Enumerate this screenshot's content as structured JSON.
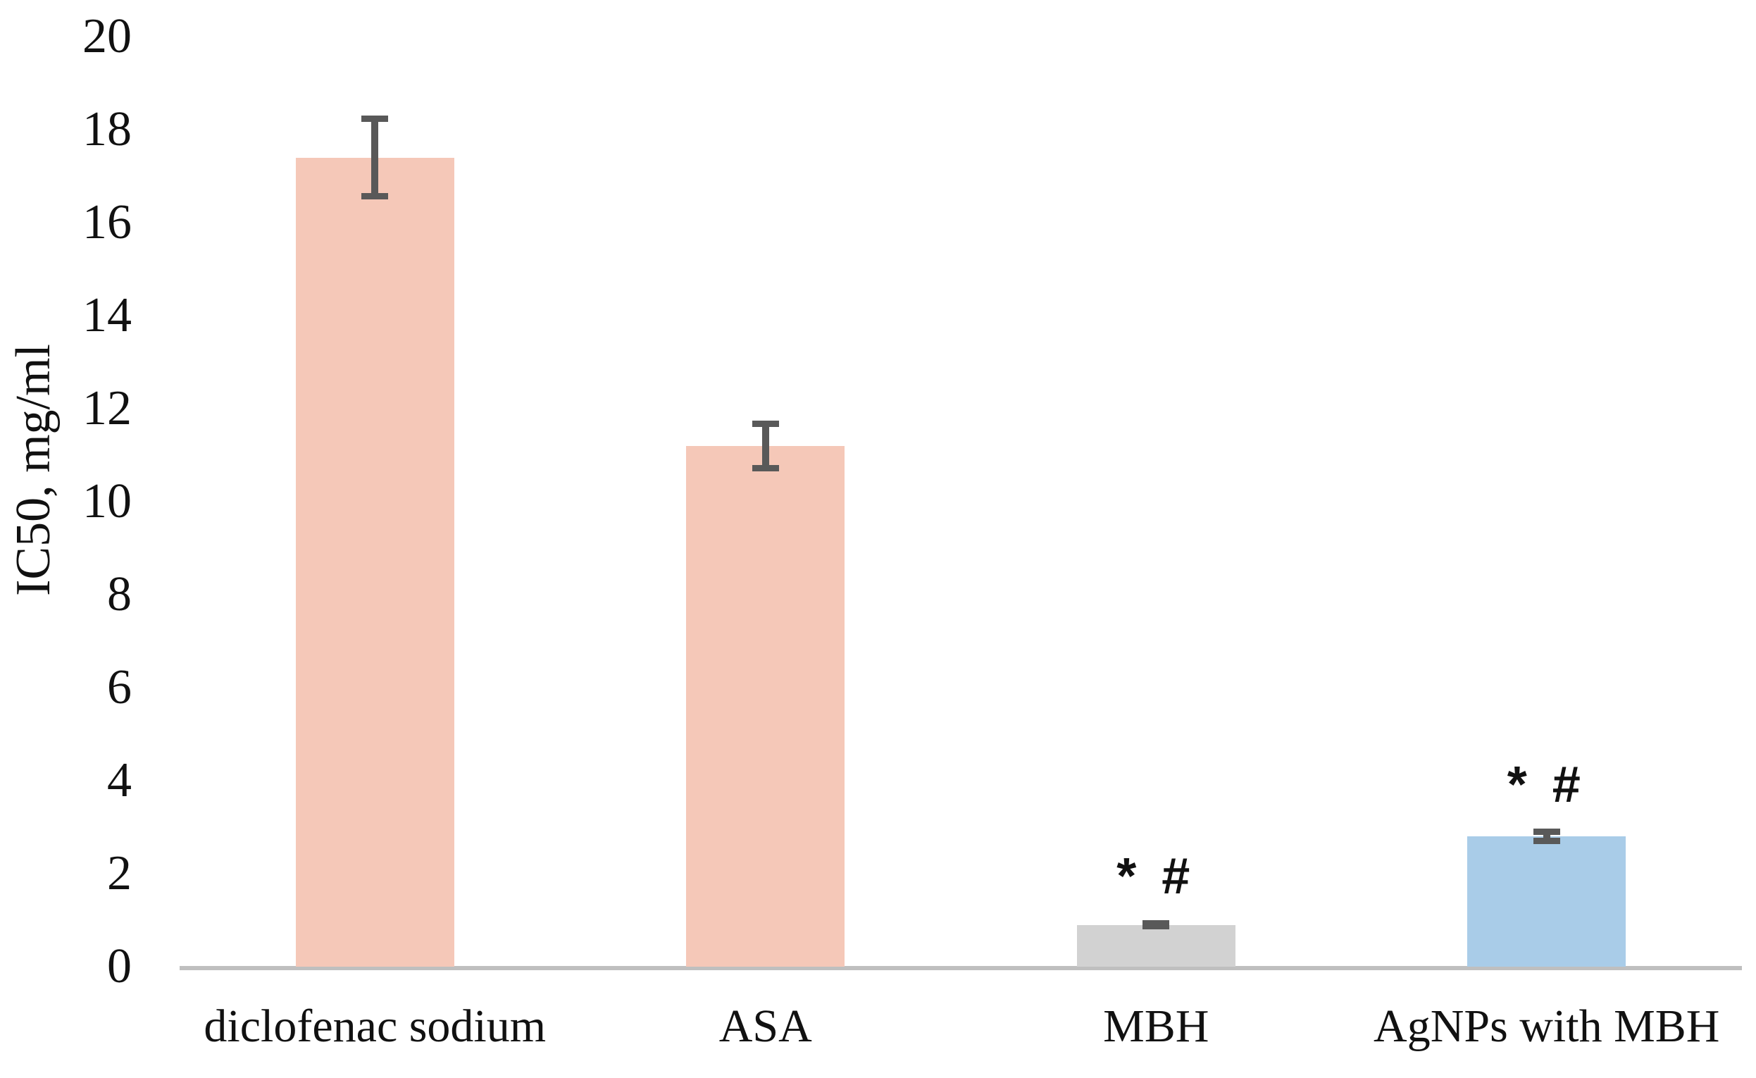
{
  "chart_data": {
    "type": "bar",
    "title": "",
    "xlabel": "",
    "ylabel": "IC50, mg/ml",
    "ylim": [
      0,
      20
    ],
    "ytick_step": 2,
    "yticks": [
      0,
      2,
      4,
      6,
      8,
      10,
      12,
      14,
      16,
      18,
      20
    ],
    "grid": false,
    "legend": null,
    "categories": [
      "diclofenac sodium",
      "ASA",
      "MBH",
      "AgNPs with MBH"
    ],
    "series": [
      {
        "name": "IC50",
        "values": [
          17.4,
          11.2,
          0.9,
          2.8
        ],
        "errors": [
          0.9,
          0.55,
          0.1,
          0.17
        ],
        "annotations": [
          "",
          "",
          "* #",
          "* #"
        ],
        "bar_colors": [
          "#F5C8B8",
          "#F5C8B8",
          "#D2D2D2",
          "#A9CCE8"
        ]
      }
    ],
    "colors": {
      "error_bar": "#595959",
      "axis_line": "#BFBFBF",
      "text": "#111111",
      "background": "#FFFFFF"
    }
  }
}
